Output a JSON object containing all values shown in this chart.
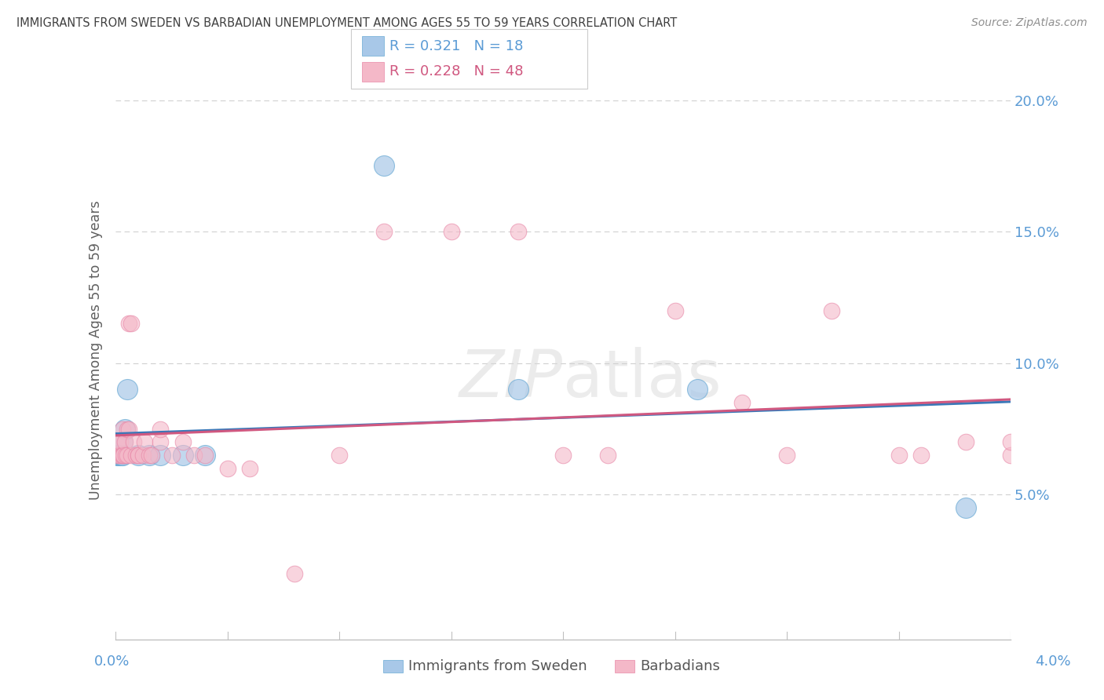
{
  "title": "IMMIGRANTS FROM SWEDEN VS BARBADIAN UNEMPLOYMENT AMONG AGES 55 TO 59 YEARS CORRELATION CHART",
  "source": "Source: ZipAtlas.com",
  "ylabel": "Unemployment Among Ages 55 to 59 years",
  "ytick_vals": [
    0.05,
    0.1,
    0.15,
    0.2
  ],
  "ytick_labels": [
    "5.0%",
    "10.0%",
    "15.0%",
    "20.0%"
  ],
  "xlim": [
    0.0,
    0.04
  ],
  "ylim": [
    -0.005,
    0.215
  ],
  "legend1_r": "0.321",
  "legend1_n": "18",
  "legend2_r": "0.228",
  "legend2_n": "48",
  "color_blue": "#a8c8e8",
  "color_blue_edge": "#6aaad4",
  "color_pink": "#f4b8c8",
  "color_pink_edge": "#e888a8",
  "color_line_blue": "#3a78b8",
  "color_line_pink": "#d05880",
  "color_ytick": "#5b9bd5",
  "color_xtick": "#5b9bd5",
  "color_title": "#404040",
  "color_ylabel": "#606060",
  "color_source": "#909090",
  "color_grid": "#d0d0d0",
  "color_spine": "#c0c0c0",
  "watermark_color": "#e8e8e8",
  "sweden_x": [
    5e-05,
    0.0001,
    0.00015,
    0.0002,
    0.00025,
    0.0003,
    0.0003,
    0.0004,
    0.0005,
    0.001,
    0.0015,
    0.002,
    0.003,
    0.004,
    0.012,
    0.018,
    0.026,
    0.038
  ],
  "sweden_y": [
    0.065,
    0.065,
    0.065,
    0.065,
    0.065,
    0.065,
    0.07,
    0.075,
    0.09,
    0.065,
    0.065,
    0.065,
    0.065,
    0.065,
    0.175,
    0.09,
    0.09,
    0.045
  ],
  "barbadian_x": [
    5e-05,
    0.0001,
    0.00015,
    0.0002,
    0.00025,
    0.0003,
    0.0003,
    0.00035,
    0.0004,
    0.00045,
    0.0005,
    0.0005,
    0.0006,
    0.0006,
    0.0007,
    0.0007,
    0.0008,
    0.0009,
    0.001,
    0.001,
    0.0012,
    0.0013,
    0.0015,
    0.0016,
    0.002,
    0.002,
    0.0025,
    0.003,
    0.0035,
    0.004,
    0.005,
    0.006,
    0.008,
    0.01,
    0.012,
    0.015,
    0.018,
    0.02,
    0.022,
    0.025,
    0.028,
    0.03,
    0.032,
    0.035,
    0.036,
    0.038,
    0.04,
    0.04
  ],
  "barbadian_y": [
    0.065,
    0.07,
    0.065,
    0.07,
    0.065,
    0.065,
    0.075,
    0.065,
    0.07,
    0.065,
    0.075,
    0.065,
    0.075,
    0.115,
    0.065,
    0.115,
    0.07,
    0.065,
    0.065,
    0.065,
    0.065,
    0.07,
    0.065,
    0.065,
    0.07,
    0.075,
    0.065,
    0.07,
    0.065,
    0.065,
    0.06,
    0.06,
    0.02,
    0.065,
    0.15,
    0.15,
    0.15,
    0.065,
    0.065,
    0.12,
    0.085,
    0.065,
    0.12,
    0.065,
    0.065,
    0.07,
    0.065,
    0.07
  ]
}
